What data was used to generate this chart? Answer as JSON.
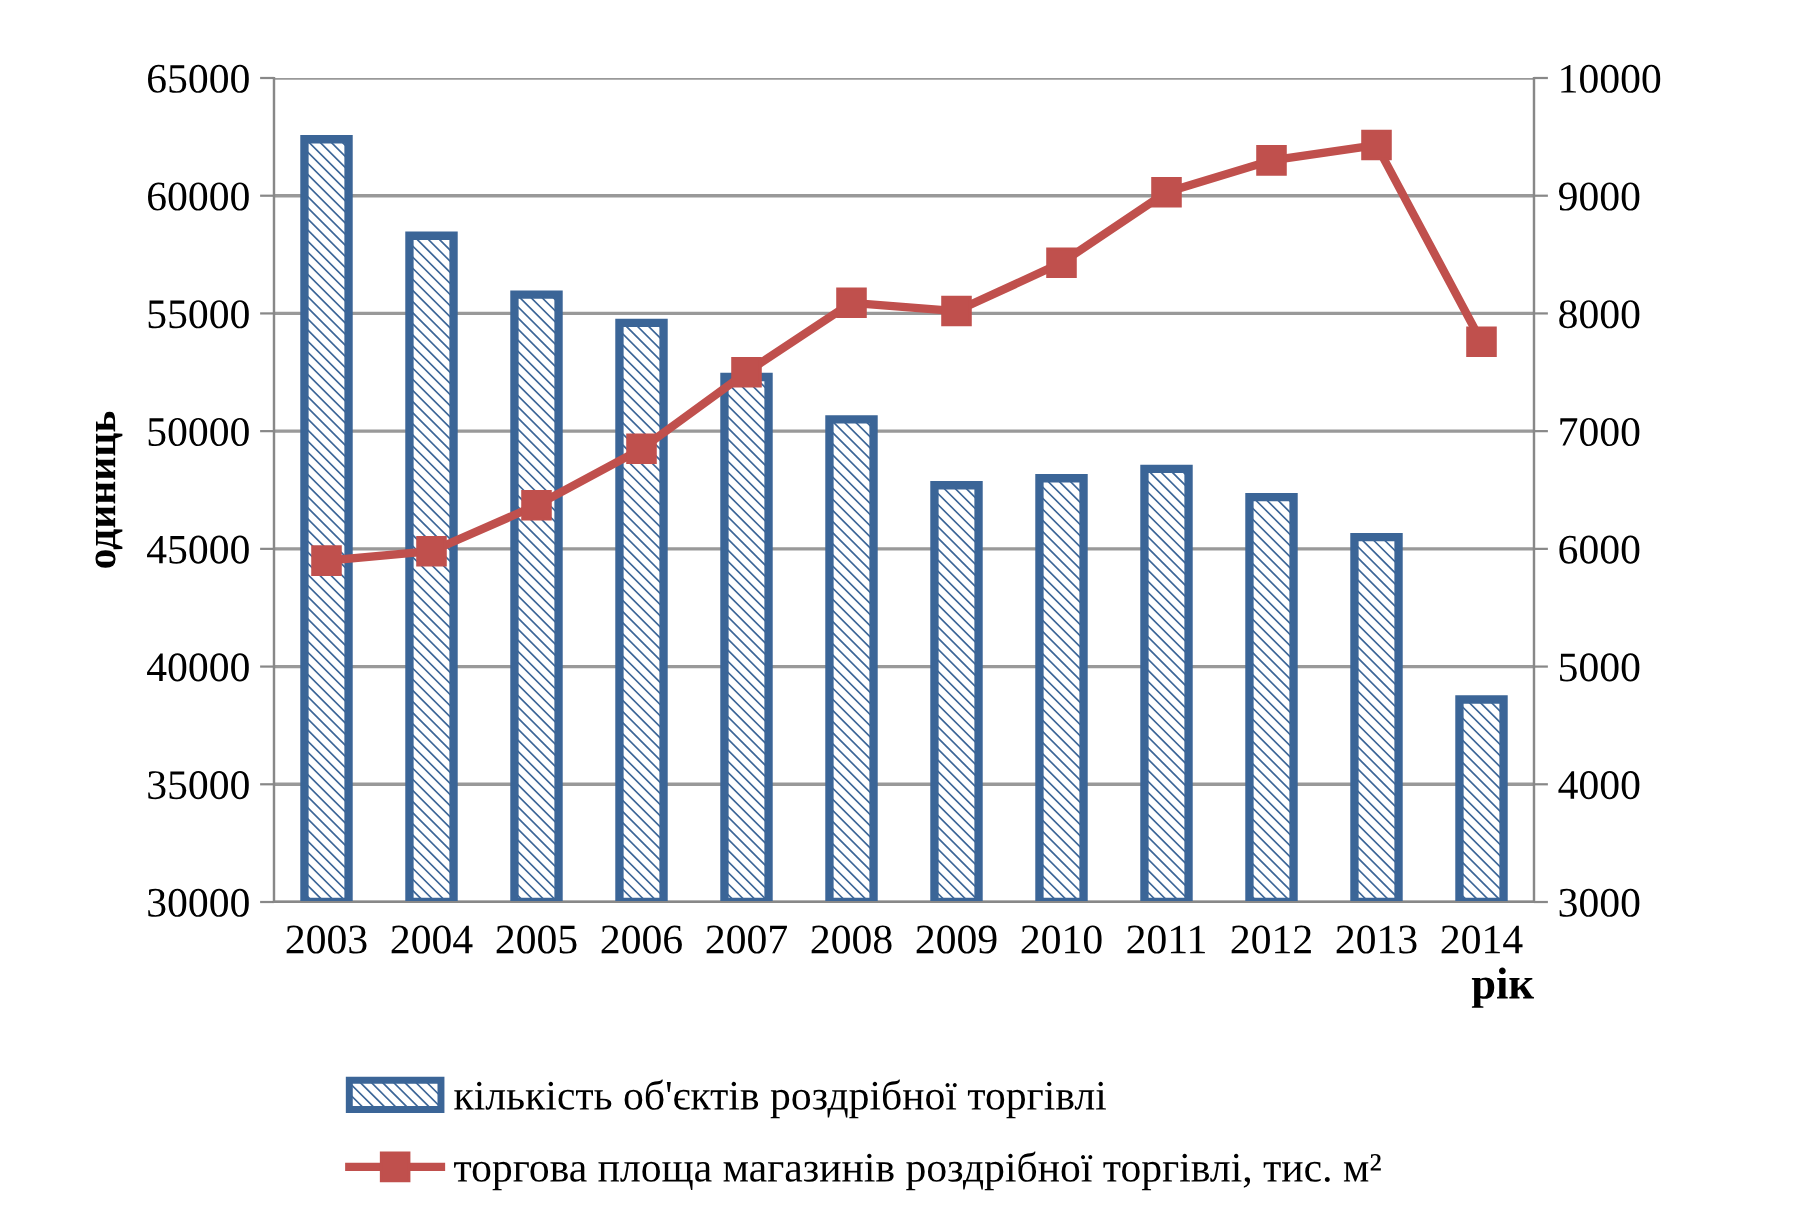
{
  "chart_data": {
    "type": "bar",
    "categories": [
      "2003",
      "2004",
      "2005",
      "2006",
      "2007",
      "2008",
      "2009",
      "2010",
      "2011",
      "2012",
      "2013",
      "2014"
    ],
    "series": [
      {
        "name": "кількість об'єктів роздрібної торгівлі",
        "color": "#3b6597",
        "values": [
          62400,
          58300,
          55800,
          54600,
          52300,
          50500,
          47700,
          48000,
          48400,
          47200,
          45500,
          38600
        ]
      },
      {
        "name": "торгова площа магазинів роздрібної торгівлі, тис. м²",
        "type": "line",
        "axis": "y2",
        "color": "#c0504d",
        "marker": "square",
        "values": [
          5900,
          5980,
          6370,
          6850,
          7500,
          8090,
          8020,
          8430,
          9030,
          9300,
          9430,
          7760
        ]
      }
    ],
    "ylabel": "одиниць",
    "xlabel": "рік",
    "ylim": [
      30000,
      65000
    ],
    "yticks": [
      30000,
      35000,
      40000,
      45000,
      50000,
      55000,
      60000,
      65000
    ],
    "y2lim": [
      3000,
      10000
    ],
    "y2ticks": [
      3000,
      4000,
      5000,
      6000,
      7000,
      8000,
      9000,
      10000
    ],
    "grid": "y",
    "legend": "bottom"
  }
}
